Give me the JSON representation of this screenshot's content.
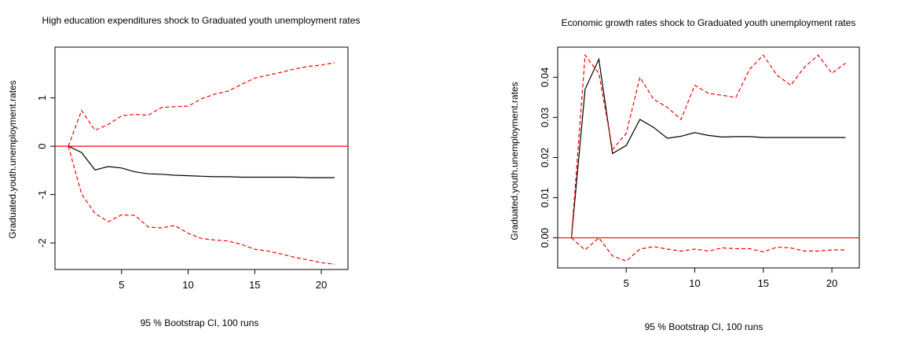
{
  "chart_data": [
    {
      "type": "line",
      "title": "High education expenditures shock to Graduated youth unemployment rates",
      "ylabel": "Graduated.youth.unemployment.rates",
      "xlabel": "95 % Bootstrap CI,  100 runs",
      "xlim": [
        0,
        22
      ],
      "ylim": [
        -2.55,
        2.05
      ],
      "xticks": [
        5,
        10,
        15,
        20
      ],
      "yticks": [
        -2,
        -1,
        0,
        1
      ],
      "zero_line": 0,
      "colors": {
        "irf": "#000000",
        "ci": "#ff0000",
        "zero": "#ff0000"
      },
      "x": [
        1,
        2,
        3,
        4,
        5,
        6,
        7,
        8,
        9,
        10,
        11,
        12,
        13,
        14,
        15,
        16,
        17,
        18,
        19,
        20,
        21
      ],
      "series": [
        {
          "role": "irf",
          "style": "solid",
          "values": [
            0,
            -0.13,
            -0.49,
            -0.42,
            -0.45,
            -0.53,
            -0.57,
            -0.58,
            -0.6,
            -0.61,
            -0.62,
            -0.63,
            -0.63,
            -0.64,
            -0.64,
            -0.64,
            -0.64,
            -0.64,
            -0.65,
            -0.65,
            -0.65
          ]
        },
        {
          "role": "upper",
          "style": "dashed",
          "values": [
            0,
            0.74,
            0.33,
            0.45,
            0.63,
            0.66,
            0.64,
            0.8,
            0.82,
            0.83,
            0.98,
            1.08,
            1.14,
            1.28,
            1.41,
            1.47,
            1.53,
            1.6,
            1.65,
            1.68,
            1.73
          ]
        },
        {
          "role": "lower",
          "style": "dashed",
          "values": [
            0,
            -0.99,
            -1.39,
            -1.56,
            -1.42,
            -1.43,
            -1.67,
            -1.69,
            -1.64,
            -1.8,
            -1.91,
            -1.94,
            -1.96,
            -2.03,
            -2.13,
            -2.17,
            -2.23,
            -2.3,
            -2.35,
            -2.41,
            -2.44
          ]
        }
      ]
    },
    {
      "type": "line",
      "title": "Economic growth rates shock to Graduated youth unemployment rates",
      "ylabel": "Graduated.youth.unemployment.rates",
      "xlabel": "95 % Bootstrap CI,  100 runs",
      "xlim": [
        0,
        22
      ],
      "ylim": [
        -0.0075,
        0.0475
      ],
      "xticks": [
        5,
        10,
        15,
        20
      ],
      "yticks": [
        0.0,
        0.01,
        0.02,
        0.03,
        0.04
      ],
      "ytick_labels": [
        "0.00",
        "0.01",
        "0.02",
        "0.03",
        "0.04"
      ],
      "zero_line": 0,
      "colors": {
        "irf": "#000000",
        "ci": "#ff0000",
        "zero": "#ff0000"
      },
      "x": [
        1,
        2,
        3,
        4,
        5,
        6,
        7,
        8,
        9,
        10,
        11,
        12,
        13,
        14,
        15,
        16,
        17,
        18,
        19,
        20,
        21
      ],
      "series": [
        {
          "role": "irf",
          "style": "solid",
          "values": [
            0,
            0.037,
            0.0445,
            0.021,
            0.023,
            0.0295,
            0.0275,
            0.0248,
            0.0253,
            0.0262,
            0.0255,
            0.0251,
            0.0252,
            0.0252,
            0.025,
            0.025,
            0.025,
            0.025,
            0.025,
            0.025,
            0.025
          ]
        },
        {
          "role": "upper",
          "style": "dashed",
          "values": [
            0,
            0.0455,
            0.041,
            0.022,
            0.026,
            0.04,
            0.0345,
            0.0325,
            0.0295,
            0.038,
            0.036,
            0.0355,
            0.035,
            0.042,
            0.0455,
            0.0405,
            0.038,
            0.0425,
            0.0455,
            0.041,
            0.0435
          ]
        },
        {
          "role": "lower",
          "style": "dashed",
          "values": [
            0,
            -0.003,
            0,
            -0.0045,
            -0.0058,
            -0.0028,
            -0.0022,
            -0.0028,
            -0.0033,
            -0.0028,
            -0.0033,
            -0.0025,
            -0.0027,
            -0.0027,
            -0.0035,
            -0.0023,
            -0.0025,
            -0.0033,
            -0.0033,
            -0.003,
            -0.003
          ]
        }
      ]
    }
  ]
}
